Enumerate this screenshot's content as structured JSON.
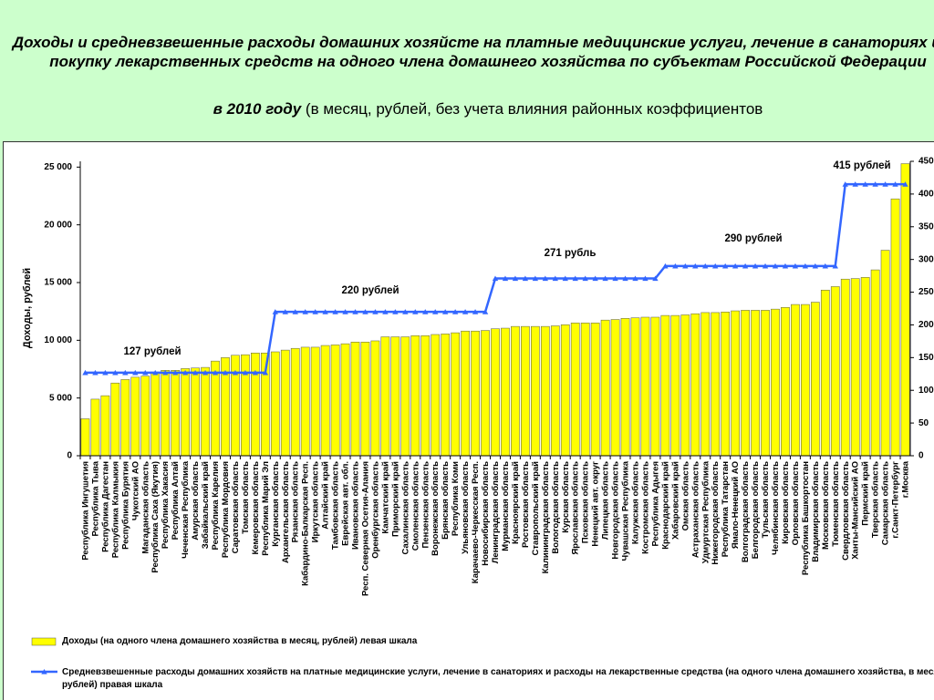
{
  "chart_data": {
    "type": "bar_line",
    "title": "Доходы и средневзвешенные расходы домашних хозяйсте на платные медицинские услуги, лечение в санаториях и на покупку лекарственных средств на одного члена домашнего хозяйства по субъектам Российской Федерации",
    "subtitle_emphasis": "в 2010 году",
    "subtitle": "(в месяц, рублей, без учета влияния районных коэффициентов",
    "y_label": "Доходы, рублей",
    "categories": [
      "Республика Ингушетия",
      "Республика Тыва",
      "Республика Дагестан",
      "Республика Калмыкия",
      "Республика Бурятия",
      "Чукотский АО",
      "Магаданская область",
      "Республика Саха (Якутия)",
      "Республика Хакасия",
      "Республика Алтай",
      "Чеченская Республика",
      "Амурская область",
      "Забайкальский край",
      "Республика Карелия",
      "Республика Мордовия",
      "Саратовская область",
      "Томская область",
      "Кемеровская область",
      "Республика Марий Эл",
      "Курганская область",
      "Архангельская область",
      "Рязанская область",
      "Кабардино-Балкарская Респ.",
      "Иркутская область",
      "Алтайский край",
      "Тамбовская область",
      "Еврейская авт. обл.",
      "Ивановская область",
      "Респ. Северная Осетия-Алания",
      "Оренбургская область",
      "Камчатский край",
      "Приморский край",
      "Сахалинская область",
      "Смоленская область",
      "Пензенская область",
      "Воронежская область",
      "Брянская область",
      "Республика Коми",
      "Ульяновская область",
      "Карачаево-Черкесская Респ.",
      "Новосибирская область",
      "Ленинградская область",
      "Мурманская область",
      "Красноярский край",
      "Ростовская область",
      "Ставропольский край",
      "Калининградская область",
      "Вологодская область",
      "Курская область",
      "Ярославская область",
      "Псковская область",
      "Ненецкий авт. округ",
      "Липецкая область",
      "Новгородская область",
      "Чувашская Республика",
      "Калужская область",
      "Костромская область",
      "Республика Адыгея",
      "Краснодарский край",
      "Хабаровский край",
      "Омская область",
      "Астраханская область",
      "Удмуртская Республика",
      "Нижегородская область",
      "Республика Татарстан",
      "Ямало-Ненецкий АО",
      "Волгоградская область",
      "Белгородская область",
      "Тульская область",
      "Челябинская область",
      "Кировская область",
      "Орловская область",
      "Республика Башкортостан",
      "Владимирская область",
      "Московская область",
      "Тюменская область",
      "Свердловская область",
      "Ханты-Мансийский АО",
      "Пермский край",
      "Тверская область",
      "Самарская область",
      "г.Санкт-Петербург",
      "г.Москва"
    ],
    "series": [
      {
        "name": "Доходы (на одного члена домашнего хозяйства в месяц, рублей) левая шкала",
        "type": "bar",
        "color": "#ffff00",
        "values": [
          3200,
          4900,
          5200,
          6300,
          6600,
          6800,
          6900,
          7250,
          7400,
          7400,
          7550,
          7600,
          7650,
          8200,
          8500,
          8700,
          8750,
          8900,
          8900,
          9000,
          9150,
          9300,
          9400,
          9400,
          9550,
          9600,
          9700,
          9850,
          9850,
          9950,
          10300,
          10300,
          10300,
          10400,
          10400,
          10500,
          10550,
          10650,
          10800,
          10800,
          10850,
          11000,
          11050,
          11200,
          11200,
          11200,
          11200,
          11250,
          11350,
          11500,
          11500,
          11500,
          11750,
          11800,
          11900,
          11950,
          12000,
          12000,
          12150,
          12150,
          12200,
          12300,
          12400,
          12400,
          12450,
          12550,
          12600,
          12600,
          12600,
          12700,
          12850,
          13100,
          13100,
          13300,
          14350,
          14650,
          15300,
          15350,
          15450,
          16100,
          17800,
          22250,
          25300
        ]
      },
      {
        "name": "Средневзвешенные расходы домашних хозяйств на платные медицинские услуги, лечение в санаториях и расходы на лекарственные средства (на одного члена домашнего хозяйства, в месяц, рублей) правая шкала",
        "type": "line",
        "axis": "y2",
        "color": "#3366ff",
        "values": [
          127,
          127,
          127,
          127,
          127,
          127,
          127,
          127,
          127,
          127,
          127,
          127,
          127,
          127,
          127,
          127,
          127,
          127,
          127,
          220,
          220,
          220,
          220,
          220,
          220,
          220,
          220,
          220,
          220,
          220,
          220,
          220,
          220,
          220,
          220,
          220,
          220,
          220,
          220,
          220,
          220,
          271,
          271,
          271,
          271,
          271,
          271,
          271,
          271,
          271,
          271,
          271,
          271,
          271,
          271,
          271,
          271,
          271,
          290,
          290,
          290,
          290,
          290,
          290,
          290,
          290,
          290,
          290,
          290,
          290,
          290,
          290,
          290,
          290,
          290,
          290,
          415,
          415,
          415,
          415,
          415,
          415,
          415
        ]
      }
    ],
    "annotations": [
      "127 рублей",
      "220 рублей",
      "271 рубль",
      "290 рублей",
      "415 рублей"
    ],
    "ylim": [
      0,
      25500
    ],
    "yticks": [
      0,
      {
        "value": 5000,
        "label": "5 000"
      },
      {
        "value": 10000,
        "label": "10 000"
      },
      {
        "value": 15000,
        "label": "15 000"
      },
      {
        "value": 20000,
        "label": "20 000"
      },
      {
        "value": 25000,
        "label": "25 000"
      }
    ],
    "y2lim": [
      0,
      450
    ],
    "y2ticks": [
      0,
      50,
      100,
      150,
      200,
      250,
      300,
      350,
      400,
      450
    ],
    "grid": false
  }
}
